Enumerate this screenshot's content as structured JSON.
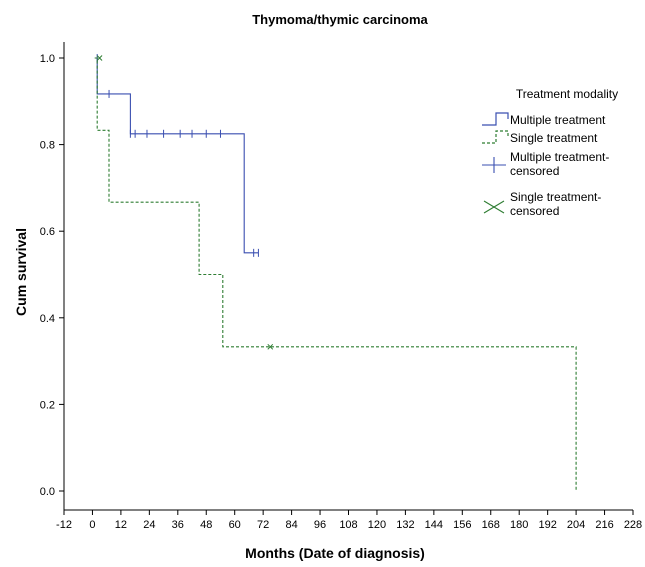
{
  "chart_data": {
    "type": "line",
    "title": "Thymoma/thymic carcinoma",
    "xlabel": "Months (Date of diagnosis)",
    "ylabel": "Cum survival",
    "xlim": [
      -12,
      228
    ],
    "ylim": [
      0,
      1.0
    ],
    "x_ticks": [
      "-12",
      "0",
      "12",
      "24",
      "36",
      "48",
      "60",
      "72",
      "84",
      "96",
      "108",
      "120",
      "132",
      "144",
      "156",
      "168",
      "180",
      "192",
      "204",
      "216",
      "228"
    ],
    "y_ticks": [
      "0.0",
      "0.2",
      "0.4",
      "0.6",
      "0.8",
      "1.0"
    ],
    "grid": false,
    "legend_position": "right",
    "legend": {
      "title": "Treatment modality",
      "entries": [
        "Multiple treatment",
        "Single treatment",
        "Multiple treatment-\ncensored",
        "Single treatment-\ncensored"
      ]
    },
    "series": [
      {
        "name": "Multiple treatment",
        "color": "#3a4fb0",
        "style": "solid",
        "points": [
          [
            1,
            1.0
          ],
          [
            2,
            1.0
          ],
          [
            2,
            0.917
          ],
          [
            16,
            0.917
          ],
          [
            16,
            0.825
          ],
          [
            64,
            0.825
          ],
          [
            64,
            0.55
          ],
          [
            70,
            0.55
          ]
        ],
        "censored": [
          [
            2,
            1.0
          ],
          [
            7,
            0.917
          ],
          [
            16,
            0.825
          ],
          [
            18,
            0.825
          ],
          [
            23,
            0.825
          ],
          [
            30,
            0.825
          ],
          [
            37,
            0.825
          ],
          [
            42,
            0.825
          ],
          [
            48,
            0.825
          ],
          [
            54,
            0.825
          ],
          [
            68,
            0.55
          ],
          [
            70,
            0.55
          ]
        ]
      },
      {
        "name": "Single treatment",
        "color": "#2e7d32",
        "style": "dashed",
        "points": [
          [
            1,
            1.0
          ],
          [
            2,
            1.0
          ],
          [
            2,
            0.833
          ],
          [
            7,
            0.833
          ],
          [
            7,
            0.667
          ],
          [
            45,
            0.667
          ],
          [
            45,
            0.5
          ],
          [
            55,
            0.5
          ],
          [
            55,
            0.333
          ],
          [
            204,
            0.333
          ],
          [
            204,
            0.0
          ]
        ],
        "censored": [
          [
            3,
            1.0
          ],
          [
            75,
            0.333
          ]
        ]
      }
    ]
  }
}
